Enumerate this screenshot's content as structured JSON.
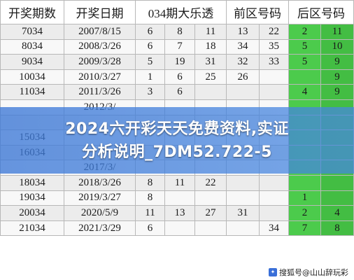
{
  "table": {
    "headers": [
      "开奖期数",
      "开奖日期",
      "034期大乐透",
      "前区号码",
      "后区号码"
    ],
    "rows": [
      [
        "7034",
        "2007/8/15",
        "6",
        "8",
        "11",
        "13",
        "22",
        "2",
        "11"
      ],
      [
        "8034",
        "2008/3/26",
        "6",
        "7",
        "18",
        "34",
        "35",
        "5",
        "10"
      ],
      [
        "9034",
        "2009/3/28",
        "5",
        "19",
        "31",
        "32",
        "33",
        "5",
        "9"
      ],
      [
        "10034",
        "2010/3/27",
        "1",
        "6",
        "25",
        "26",
        "",
        "",
        "9"
      ],
      [
        "11034",
        "2011/3/26",
        "3",
        "6",
        "",
        "",
        "",
        "4",
        "9"
      ],
      [
        "",
        "2012/3/",
        "",
        "",
        "",
        "",
        "",
        "",
        ""
      ],
      [
        "",
        "",
        "",
        "",
        "",
        "",
        "",
        "",
        ""
      ],
      [
        "15034",
        "",
        "",
        "",
        "",
        "",
        "",
        "",
        ""
      ],
      [
        "16034",
        "",
        "",
        "",
        "",
        "",
        "",
        "",
        ""
      ],
      [
        "",
        "2017/3/",
        "",
        "",
        "",
        "",
        "",
        "",
        ""
      ],
      [
        "18034",
        "2018/3/26",
        "8",
        "11",
        "22",
        "",
        "",
        "",
        ""
      ],
      [
        "19034",
        "2019/3/27",
        "8",
        "",
        "",
        "",
        "",
        "1",
        ""
      ],
      [
        "20034",
        "2020/5/9",
        "11",
        "13",
        "27",
        "31",
        "",
        "2",
        "4"
      ],
      [
        "21034",
        "2021/3/29",
        "6",
        "",
        "",
        "",
        "34",
        "7",
        "8"
      ]
    ]
  },
  "overlay": {
    "line1": "2024六开彩天天免费资料,实证",
    "line2": "分析说明_7DM52.722-5"
  },
  "watermark": {
    "text": "搜狐号@山山辞玩彩",
    "icon": "sohu-logo-icon"
  },
  "colors": {
    "back_zone_green": "#4ccb4c",
    "overlay_blue": "#3c78d7"
  }
}
